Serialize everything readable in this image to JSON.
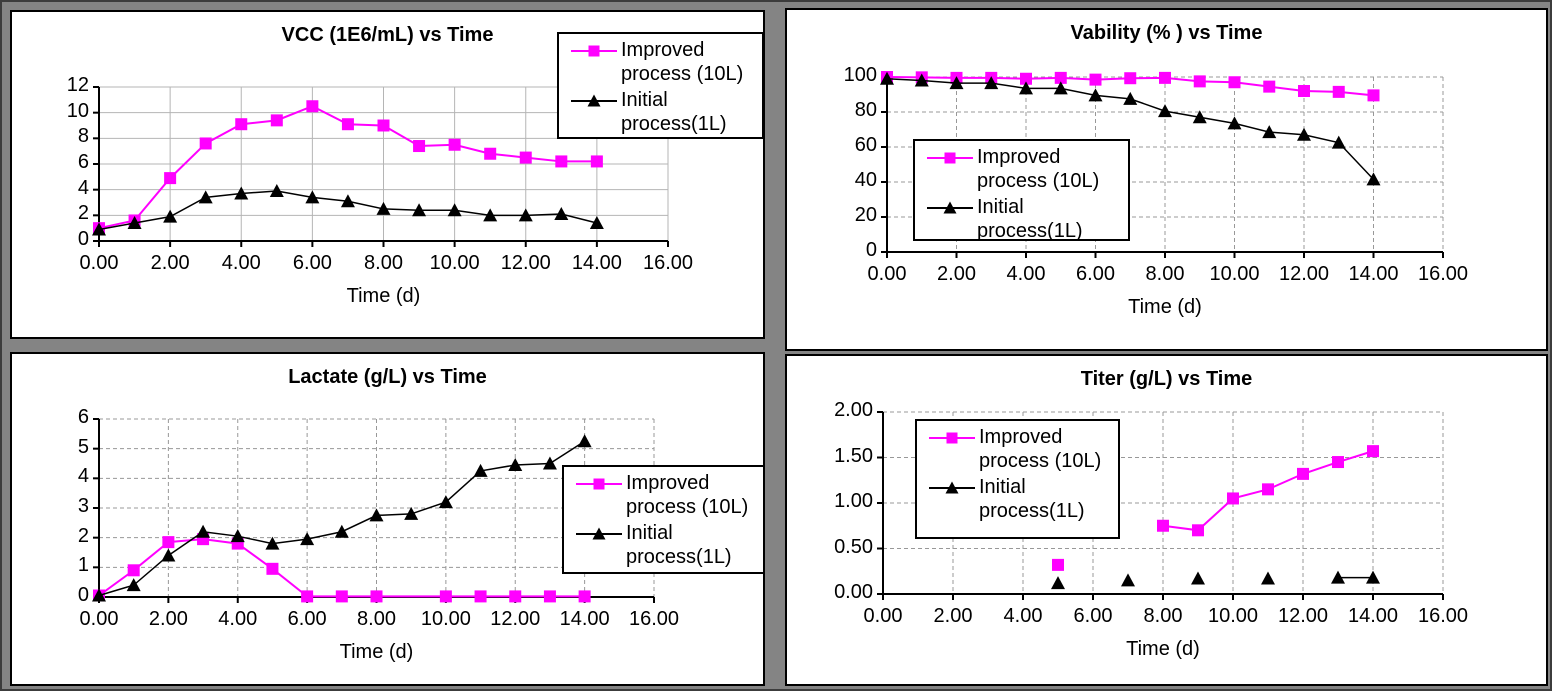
{
  "page": {
    "window_background": "#848484",
    "panel_background": "#ffffff",
    "panel_border": "#000000",
    "accent_magenta": "#FF00FF",
    "series_black": "#000000"
  },
  "chart_data": [
    {
      "type": "line",
      "title": "VCC (1E6/mL) vs Time",
      "xlabel": "Time (d)",
      "xlim": [
        0,
        16
      ],
      "ylim": [
        0,
        12
      ],
      "grid": "solid",
      "legend_position": "top-right",
      "x_ticks": {
        "values": [
          0,
          2,
          4,
          6,
          8,
          10,
          12,
          14,
          16
        ],
        "labels": [
          "0.00",
          "2.00",
          "4.00",
          "6.00",
          "8.00",
          "10.00",
          "12.00",
          "14.00",
          "16.00"
        ]
      },
      "y_ticks": {
        "values": [
          0,
          2,
          4,
          6,
          8,
          10,
          12
        ],
        "labels": [
          "0",
          "2",
          "4",
          "6",
          "8",
          "10",
          "12"
        ]
      },
      "series": [
        {
          "name": "Improved process (10L)",
          "legend_lines": [
            "Improved",
            "process (10L)"
          ],
          "color": "#FF00FF",
          "marker": "square",
          "segments": [
            [
              [
                0,
                1.0
              ],
              [
                1,
                1.6
              ],
              [
                2,
                4.9
              ],
              [
                3,
                7.6
              ],
              [
                4,
                9.1
              ],
              [
                5,
                9.4
              ],
              [
                6,
                10.5
              ],
              [
                7,
                9.1
              ],
              [
                8,
                9.0
              ],
              [
                9,
                7.4
              ],
              [
                10,
                7.5
              ],
              [
                11,
                6.8
              ],
              [
                12,
                6.5
              ],
              [
                13,
                6.2
              ],
              [
                14,
                6.2
              ]
            ]
          ]
        },
        {
          "name": "Initial process(1L)",
          "legend_lines": [
            "Initial",
            "process(1L)"
          ],
          "color": "#000000",
          "marker": "triangle",
          "segments": [
            [
              [
                0,
                0.9
              ],
              [
                1,
                1.4
              ],
              [
                2,
                1.9
              ],
              [
                3,
                3.4
              ],
              [
                4,
                3.7
              ],
              [
                5,
                3.9
              ],
              [
                6,
                3.4
              ],
              [
                7,
                3.1
              ],
              [
                8,
                2.5
              ],
              [
                9,
                2.4
              ],
              [
                10,
                2.4
              ],
              [
                11,
                2.0
              ],
              [
                12,
                2.0
              ],
              [
                13,
                2.1
              ],
              [
                14,
                1.4
              ]
            ]
          ]
        }
      ]
    },
    {
      "type": "line",
      "title": "Vability (% ) vs Time",
      "xlabel": "Time (d)",
      "xlim": [
        0,
        16
      ],
      "ylim": [
        0,
        100
      ],
      "grid": "dashed",
      "legend_position": "middle-left",
      "x_ticks": {
        "values": [
          0,
          2,
          4,
          6,
          8,
          10,
          12,
          14,
          16
        ],
        "labels": [
          "0.00",
          "2.00",
          "4.00",
          "6.00",
          "8.00",
          "10.00",
          "12.00",
          "14.00",
          "16.00"
        ]
      },
      "y_ticks": {
        "values": [
          0,
          20,
          40,
          60,
          80,
          100
        ],
        "labels": [
          "0",
          "20",
          "40",
          "60",
          "80",
          "100"
        ]
      },
      "series": [
        {
          "name": "Improved process (10L)",
          "legend_lines": [
            "Improved",
            "process (10L)"
          ],
          "color": "#FF00FF",
          "marker": "square",
          "segments": [
            [
              [
                0,
                100
              ],
              [
                1,
                99.8
              ],
              [
                2,
                99.5
              ],
              [
                3,
                99.5
              ],
              [
                4,
                99
              ],
              [
                5,
                99.5
              ],
              [
                6,
                98.5
              ],
              [
                7,
                99.3
              ],
              [
                8,
                99.5
              ],
              [
                9,
                97.5
              ],
              [
                10,
                97
              ],
              [
                11,
                94.5
              ],
              [
                12,
                92
              ],
              [
                13,
                91.5
              ],
              [
                14,
                89.5
              ]
            ]
          ]
        },
        {
          "name": "Initial process(1L)",
          "legend_lines": [
            "Initial",
            "process(1L)"
          ],
          "color": "#000000",
          "marker": "triangle",
          "segments": [
            [
              [
                0,
                99
              ],
              [
                1,
                98
              ],
              [
                2,
                96.5
              ],
              [
                3,
                96.5
              ],
              [
                4,
                93.5
              ],
              [
                5,
                93.5
              ],
              [
                6,
                89.5
              ],
              [
                7,
                87.5
              ],
              [
                8,
                80.5
              ],
              [
                9,
                77
              ],
              [
                10,
                73.5
              ],
              [
                11,
                68.5
              ],
              [
                12,
                67
              ],
              [
                13,
                62.5
              ],
              [
                14,
                41.5
              ]
            ]
          ]
        }
      ]
    },
    {
      "type": "line",
      "title": "Lactate (g/L) vs Time",
      "xlabel": "Time (d)",
      "xlim": [
        0,
        16
      ],
      "ylim": [
        0,
        6
      ],
      "grid": "dashed",
      "legend_position": "middle-right",
      "x_ticks": {
        "values": [
          0,
          2,
          4,
          6,
          8,
          10,
          12,
          14,
          16
        ],
        "labels": [
          "0.00",
          "2.00",
          "4.00",
          "6.00",
          "8.00",
          "10.00",
          "12.00",
          "14.00",
          "16.00"
        ]
      },
      "y_ticks": {
        "values": [
          0,
          1,
          2,
          3,
          4,
          5,
          6
        ],
        "labels": [
          "0",
          "1",
          "2",
          "3",
          "4",
          "5",
          "6"
        ]
      },
      "series": [
        {
          "name": "Improved process (10L)",
          "legend_lines": [
            "Improved",
            "process (10L)"
          ],
          "color": "#FF00FF",
          "marker": "square",
          "segments": [
            [
              [
                0,
                0.05
              ],
              [
                1,
                0.9
              ],
              [
                2,
                1.85
              ],
              [
                3,
                1.95
              ],
              [
                4,
                1.8
              ],
              [
                5,
                0.95
              ],
              [
                6,
                0.02
              ],
              [
                7,
                0.02
              ],
              [
                8,
                0.02
              ],
              [
                10,
                0.02
              ],
              [
                11,
                0.02
              ],
              [
                12,
                0.02
              ],
              [
                13,
                0.02
              ],
              [
                14,
                0.02
              ]
            ]
          ]
        },
        {
          "name": "Initial process(1L)",
          "legend_lines": [
            "Initial",
            "process(1L)"
          ],
          "color": "#000000",
          "marker": "triangle",
          "segments": [
            [
              [
                0,
                0.05
              ],
              [
                1,
                0.4
              ],
              [
                2,
                1.4
              ],
              [
                3,
                2.2
              ],
              [
                4,
                2.05
              ],
              [
                5,
                1.8
              ],
              [
                6,
                1.95
              ],
              [
                7,
                2.2
              ],
              [
                8,
                2.75
              ],
              [
                9,
                2.8
              ],
              [
                10,
                3.2
              ],
              [
                11,
                4.25
              ],
              [
                12,
                4.45
              ],
              [
                13,
                4.5
              ],
              [
                14,
                5.25
              ]
            ]
          ]
        }
      ]
    },
    {
      "type": "line",
      "title": "Titer (g/L) vs Time",
      "xlabel": "Time (d)",
      "xlim": [
        0,
        16
      ],
      "ylim": [
        0,
        2
      ],
      "grid": "dashed",
      "legend_position": "top-left",
      "x_ticks": {
        "values": [
          0,
          2,
          4,
          6,
          8,
          10,
          12,
          14,
          16
        ],
        "labels": [
          "0.00",
          "2.00",
          "4.00",
          "6.00",
          "8.00",
          "10.00",
          "12.00",
          "14.00",
          "16.00"
        ]
      },
      "y_ticks": {
        "values": [
          0,
          0.5,
          1,
          1.5,
          2
        ],
        "labels": [
          "0.00",
          "0.50",
          "1.00",
          "1.50",
          "2.00"
        ]
      },
      "series": [
        {
          "name": "Improved process (10L)",
          "legend_lines": [
            "Improved",
            "process (10L)"
          ],
          "color": "#FF00FF",
          "marker": "square",
          "segments": [
            [
              [
                5,
                0.32
              ]
            ],
            [
              [
                8,
                0.75
              ],
              [
                9,
                0.7
              ],
              [
                10,
                1.05
              ],
              [
                11,
                1.15
              ],
              [
                12,
                1.32
              ],
              [
                13,
                1.45
              ],
              [
                14,
                1.57
              ]
            ]
          ]
        },
        {
          "name": "Initial process(1L)",
          "legend_lines": [
            "Initial",
            "process(1L)"
          ],
          "color": "#000000",
          "marker": "triangle",
          "segments": [
            [
              [
                5,
                0.12
              ]
            ],
            [
              [
                7,
                0.15
              ]
            ],
            [
              [
                9,
                0.17
              ]
            ],
            [
              [
                11,
                0.17
              ]
            ],
            [
              [
                13,
                0.18
              ],
              [
                14,
                0.18
              ]
            ]
          ]
        }
      ]
    }
  ]
}
